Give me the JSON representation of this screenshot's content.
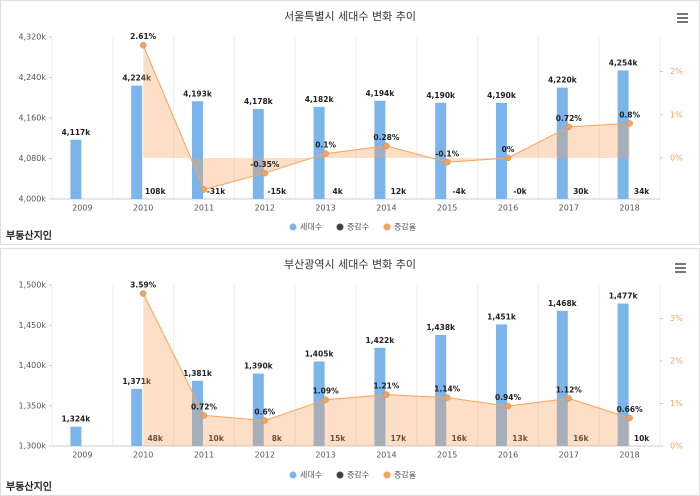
{
  "chart_data": [
    {
      "type": "combo",
      "title": "서울특별시 세대수 변화 추이",
      "categories": [
        "2009",
        "2010",
        "2011",
        "2012",
        "2013",
        "2014",
        "2015",
        "2016",
        "2017",
        "2018"
      ],
      "ylim": [
        4000,
        4320
      ],
      "yticks": [
        {
          "value": 4000,
          "label": "4,000k"
        },
        {
          "value": 4080,
          "label": "4,080k"
        },
        {
          "value": 4160,
          "label": "4,160k"
        },
        {
          "value": 4240,
          "label": "4,240k"
        },
        {
          "value": 4320,
          "label": "4,320k"
        }
      ],
      "y2lim": [
        -0.95,
        2.8
      ],
      "y2ticks": [
        {
          "value": 0,
          "label": "0%"
        },
        {
          "value": 1,
          "label": "1%"
        },
        {
          "value": 2,
          "label": "2%"
        }
      ],
      "series": [
        {
          "name": "세대수",
          "type": "bar",
          "color": "#7cb5ec",
          "values": [
            4117,
            4224,
            4193,
            4178,
            4182,
            4194,
            4190,
            4190,
            4220,
            4254
          ],
          "value_labels": [
            "4,117k",
            "4,224k",
            "4,193k",
            "4,178k",
            "4,182k",
            "4,194k",
            "4,190k",
            "4,190k",
            "4,220k",
            "4,254k"
          ]
        },
        {
          "name": "증감수",
          "type": "bar",
          "color": "#434348",
          "values": [
            null,
            108,
            -31,
            -15,
            4,
            12,
            -4,
            0,
            30,
            34
          ],
          "value_labels": [
            null,
            "108k",
            "-31k",
            "-15k",
            "4k",
            "12k",
            "-4k",
            "-0k",
            "30k",
            "34k"
          ]
        },
        {
          "name": "증감율",
          "type": "area",
          "axis": "y2",
          "color": "#f7a35c",
          "values": [
            null,
            2.61,
            -0.73,
            -0.35,
            0.1,
            0.28,
            -0.1,
            0,
            0.72,
            0.8
          ],
          "value_labels": [
            null,
            "2.61%",
            null,
            "-0.35%",
            "0.1%",
            "0.28%",
            "-0.1%",
            "0%",
            "0.72%",
            "0.8%"
          ]
        }
      ]
    },
    {
      "type": "combo",
      "title": "부산광역시 세대수 변화 추이",
      "categories": [
        "2009",
        "2010",
        "2011",
        "2012",
        "2013",
        "2014",
        "2015",
        "2016",
        "2017",
        "2018"
      ],
      "ylim": [
        1300,
        1500
      ],
      "yticks": [
        {
          "value": 1300,
          "label": "1,300k"
        },
        {
          "value": 1350,
          "label": "1,350k"
        },
        {
          "value": 1400,
          "label": "1,400k"
        },
        {
          "value": 1450,
          "label": "1,450k"
        },
        {
          "value": 1500,
          "label": "1,500k"
        }
      ],
      "y2lim": [
        0,
        3.79
      ],
      "y2ticks": [
        {
          "value": 0,
          "label": "0%"
        },
        {
          "value": 1,
          "label": "1%"
        },
        {
          "value": 2,
          "label": "2%"
        },
        {
          "value": 3,
          "label": "3%"
        }
      ],
      "series": [
        {
          "name": "세대수",
          "type": "bar",
          "color": "#7cb5ec",
          "values": [
            1324,
            1371,
            1381,
            1390,
            1405,
            1422,
            1438,
            1451,
            1468,
            1477
          ],
          "value_labels": [
            "1,324k",
            "1,371k",
            "1,381k",
            "1,390k",
            "1,405k",
            "1,422k",
            "1,438k",
            "1,451k",
            "1,468k",
            "1,477k"
          ]
        },
        {
          "name": "증감수",
          "type": "bar",
          "color": "#434348",
          "values": [
            null,
            48,
            10,
            8,
            15,
            17,
            16,
            13,
            16,
            10
          ],
          "value_labels": [
            null,
            "48k",
            "10k",
            "8k",
            "15k",
            "17k",
            "16k",
            "13k",
            "16k",
            "10k"
          ]
        },
        {
          "name": "증감율",
          "type": "area",
          "axis": "y2",
          "color": "#f7a35c",
          "values": [
            null,
            3.59,
            0.72,
            0.6,
            1.09,
            1.21,
            1.14,
            0.94,
            1.12,
            0.66
          ],
          "value_labels": [
            null,
            "3.59%",
            "0.72%",
            "0.6%",
            "1.09%",
            "1.21%",
            "1.14%",
            "0.94%",
            "1.12%",
            "0.66%"
          ]
        }
      ]
    }
  ],
  "logo": [
    "부동산지인",
    "부동산지인"
  ]
}
